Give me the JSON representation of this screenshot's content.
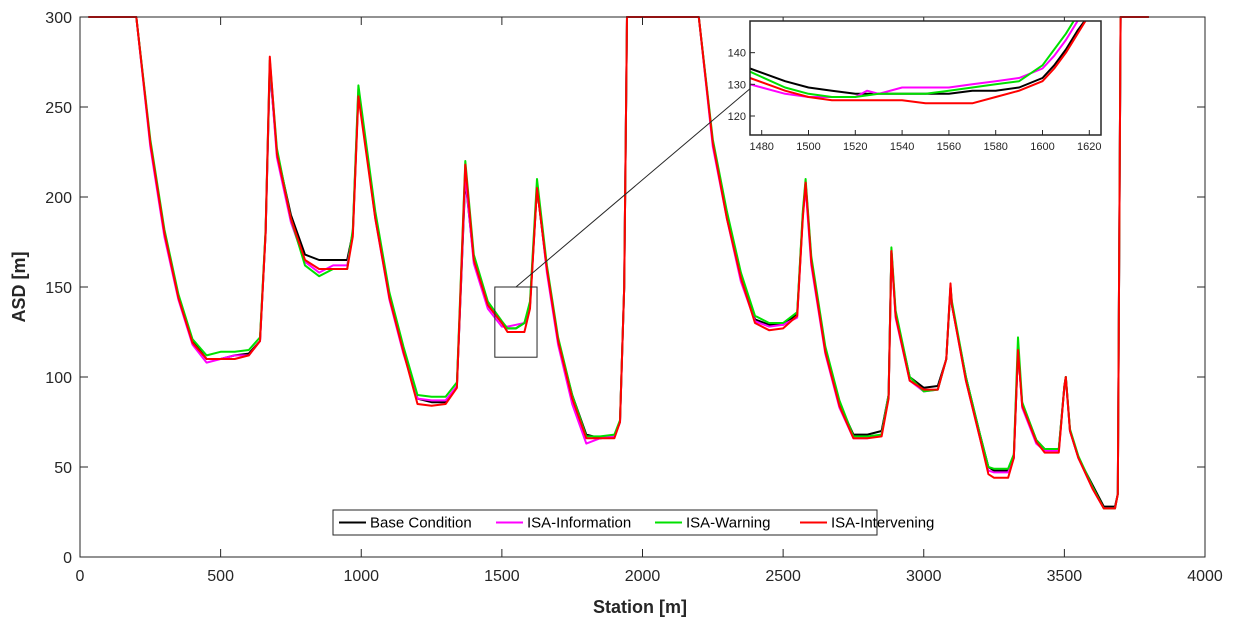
{
  "chart_data": {
    "type": "line",
    "title": "",
    "xlabel": "Station [m]",
    "ylabel": "ASD [m]",
    "xlim": [
      0,
      4000
    ],
    "ylim": [
      0,
      300
    ],
    "xticks": [
      0,
      500,
      1000,
      1500,
      2000,
      2500,
      3000,
      3500,
      4000
    ],
    "yticks": [
      0,
      50,
      100,
      150,
      200,
      250,
      300
    ],
    "grid": false,
    "legend_position": "bottom-center",
    "series": [
      {
        "name": "Base Condition",
        "color": "#000000",
        "x": [
          30,
          200,
          250,
          300,
          350,
          400,
          450,
          500,
          550,
          600,
          640,
          660,
          675,
          700,
          750,
          800,
          850,
          900,
          950,
          970,
          990,
          1050,
          1100,
          1150,
          1200,
          1250,
          1300,
          1340,
          1370,
          1400,
          1450,
          1500,
          1520,
          1550,
          1580,
          1600,
          1625,
          1660,
          1700,
          1750,
          1800,
          1850,
          1900,
          1920,
          1935,
          1945,
          2200,
          2250,
          2300,
          2350,
          2400,
          2450,
          2500,
          2550,
          2570,
          2580,
          2600,
          2650,
          2700,
          2750,
          2800,
          2850,
          2875,
          2885,
          2900,
          2950,
          3000,
          3050,
          3080,
          3095,
          3100,
          3150,
          3200,
          3230,
          3250,
          3300,
          3320,
          3335,
          3350,
          3400,
          3430,
          3450,
          3480,
          3500,
          3505,
          3520,
          3550,
          3600,
          3640,
          3680,
          3690,
          3700,
          3800
        ],
        "y": [
          300,
          300,
          230,
          180,
          145,
          120,
          110,
          110,
          112,
          113,
          120,
          180,
          272,
          225,
          190,
          168,
          165,
          165,
          165,
          180,
          258,
          190,
          145,
          115,
          88,
          86,
          86,
          95,
          210,
          165,
          140,
          130,
          127,
          127,
          130,
          140,
          205,
          160,
          120,
          90,
          68,
          66,
          67,
          75,
          150,
          300,
          300,
          230,
          190,
          155,
          132,
          129,
          129,
          135,
          190,
          208,
          165,
          115,
          85,
          68,
          68,
          70,
          90,
          170,
          135,
          100,
          94,
          95,
          110,
          150,
          140,
          100,
          68,
          50,
          48,
          48,
          55,
          115,
          85,
          65,
          60,
          60,
          60,
          95,
          100,
          70,
          55,
          40,
          28,
          28,
          35,
          300,
          300
        ]
      },
      {
        "name": "ISA-Information",
        "color": "#ff00ff",
        "x": [
          30,
          200,
          250,
          300,
          350,
          400,
          450,
          500,
          550,
          600,
          640,
          660,
          675,
          700,
          750,
          800,
          850,
          900,
          950,
          970,
          990,
          1050,
          1100,
          1150,
          1200,
          1250,
          1300,
          1340,
          1370,
          1400,
          1450,
          1500,
          1520,
          1550,
          1580,
          1600,
          1625,
          1660,
          1700,
          1750,
          1800,
          1850,
          1900,
          1920,
          1935,
          1945,
          2200,
          2250,
          2300,
          2350,
          2400,
          2450,
          2500,
          2550,
          2570,
          2580,
          2600,
          2650,
          2700,
          2750,
          2800,
          2850,
          2875,
          2885,
          2900,
          2950,
          3000,
          3050,
          3080,
          3095,
          3100,
          3150,
          3200,
          3230,
          3250,
          3300,
          3320,
          3335,
          3350,
          3400,
          3430,
          3450,
          3480,
          3500,
          3505,
          3520,
          3550,
          3600,
          3640,
          3680,
          3690,
          3700,
          3800
        ],
        "y": [
          300,
          300,
          228,
          178,
          143,
          118,
          108,
          110,
          112,
          112,
          120,
          180,
          274,
          222,
          186,
          164,
          158,
          162,
          162,
          180,
          260,
          188,
          143,
          113,
          88,
          87,
          87,
          95,
          212,
          163,
          138,
          128,
          128,
          129,
          130,
          140,
          207,
          158,
          118,
          85,
          63,
          66,
          67,
          75,
          150,
          300,
          300,
          228,
          188,
          153,
          131,
          128,
          129,
          133,
          190,
          205,
          162,
          113,
          83,
          66,
          66,
          68,
          90,
          170,
          133,
          98,
          92,
          93,
          110,
          150,
          140,
          98,
          66,
          48,
          47,
          47,
          55,
          117,
          83,
          63,
          59,
          59,
          59,
          95,
          99,
          70,
          55,
          38,
          27,
          27,
          35,
          300,
          300
        ]
      },
      {
        "name": "ISA-Warning",
        "color": "#00e000",
        "x": [
          30,
          200,
          250,
          300,
          350,
          400,
          450,
          500,
          550,
          600,
          640,
          660,
          675,
          700,
          750,
          800,
          850,
          900,
          950,
          970,
          990,
          1050,
          1100,
          1150,
          1200,
          1250,
          1300,
          1340,
          1370,
          1400,
          1450,
          1500,
          1520,
          1550,
          1580,
          1600,
          1625,
          1660,
          1700,
          1750,
          1800,
          1850,
          1900,
          1920,
          1935,
          1945,
          2200,
          2250,
          2300,
          2350,
          2400,
          2450,
          2500,
          2550,
          2570,
          2580,
          2600,
          2650,
          2700,
          2750,
          2800,
          2850,
          2875,
          2885,
          2900,
          2950,
          3000,
          3050,
          3080,
          3095,
          3100,
          3150,
          3200,
          3230,
          3250,
          3300,
          3320,
          3335,
          3350,
          3400,
          3430,
          3450,
          3480,
          3500,
          3505,
          3520,
          3550,
          3600,
          3640,
          3680,
          3690,
          3700,
          3800
        ],
        "y": [
          300,
          300,
          232,
          182,
          146,
          121,
          112,
          114,
          114,
          115,
          122,
          182,
          276,
          227,
          188,
          162,
          156,
          160,
          160,
          182,
          262,
          192,
          147,
          117,
          90,
          89,
          89,
          97,
          220,
          168,
          142,
          131,
          127,
          127,
          130,
          142,
          210,
          162,
          122,
          90,
          67,
          67,
          68,
          76,
          150,
          300,
          300,
          232,
          192,
          158,
          134,
          130,
          130,
          136,
          192,
          210,
          167,
          117,
          87,
          67,
          67,
          68,
          90,
          172,
          137,
          100,
          92,
          93,
          110,
          150,
          142,
          100,
          68,
          50,
          49,
          49,
          57,
          122,
          86,
          65,
          60,
          60,
          60,
          95,
          100,
          71,
          56,
          39,
          27,
          27,
          35,
          300,
          300
        ]
      },
      {
        "name": "ISA-Intervening",
        "color": "#ff0000",
        "x": [
          30,
          200,
          250,
          300,
          350,
          400,
          450,
          500,
          550,
          600,
          640,
          660,
          675,
          700,
          750,
          800,
          850,
          900,
          950,
          970,
          990,
          1050,
          1100,
          1150,
          1200,
          1250,
          1300,
          1340,
          1370,
          1400,
          1450,
          1500,
          1520,
          1550,
          1580,
          1600,
          1625,
          1660,
          1700,
          1750,
          1800,
          1850,
          1900,
          1920,
          1935,
          1945,
          2200,
          2250,
          2300,
          2350,
          2400,
          2450,
          2500,
          2550,
          2570,
          2580,
          2600,
          2650,
          2700,
          2750,
          2800,
          2850,
          2875,
          2885,
          2900,
          2950,
          3000,
          3050,
          3080,
          3095,
          3100,
          3150,
          3200,
          3230,
          3250,
          3300,
          3320,
          3335,
          3350,
          3400,
          3430,
          3450,
          3480,
          3500,
          3505,
          3520,
          3550,
          3600,
          3640,
          3680,
          3690,
          3700,
          3800
        ],
        "y": [
          300,
          300,
          230,
          180,
          144,
          119,
          110,
          110,
          110,
          112,
          120,
          180,
          278,
          224,
          188,
          165,
          160,
          160,
          160,
          178,
          256,
          188,
          144,
          114,
          85,
          84,
          85,
          94,
          218,
          165,
          140,
          130,
          125,
          125,
          125,
          138,
          205,
          160,
          120,
          88,
          66,
          66,
          66,
          75,
          150,
          300,
          300,
          230,
          188,
          155,
          130,
          126,
          127,
          134,
          188,
          208,
          164,
          114,
          84,
          66,
          66,
          67,
          88,
          170,
          134,
          98,
          93,
          93,
          110,
          152,
          140,
          98,
          66,
          46,
          44,
          44,
          55,
          115,
          84,
          64,
          58,
          58,
          58,
          95,
          100,
          70,
          55,
          38,
          27,
          27,
          35,
          300,
          300
        ]
      }
    ],
    "inset": {
      "xlim": [
        1475,
        1625
      ],
      "ylim": [
        114,
        150
      ],
      "xticks": [
        1480,
        1500,
        1520,
        1540,
        1560,
        1580,
        1600,
        1620
      ],
      "yticks": [
        120,
        130,
        140
      ],
      "zoom_box": {
        "xlim": [
          1475,
          1625
        ],
        "ylim": [
          111,
          150
        ]
      },
      "series": [
        {
          "name": "Base Condition",
          "color": "#000000",
          "x": [
            1475,
            1490,
            1500,
            1510,
            1520,
            1530,
            1540,
            1550,
            1560,
            1570,
            1580,
            1590,
            1600,
            1605,
            1610,
            1615,
            1620
          ],
          "y": [
            135,
            131,
            129,
            128,
            127,
            127,
            127,
            127,
            127,
            128,
            128,
            129,
            132,
            136,
            141,
            147,
            152
          ]
        },
        {
          "name": "ISA-Information",
          "color": "#ff00ff",
          "x": [
            1475,
            1490,
            1500,
            1510,
            1520,
            1525,
            1530,
            1540,
            1550,
            1560,
            1570,
            1580,
            1590,
            1600,
            1605,
            1610,
            1615,
            1620
          ],
          "y": [
            130,
            127,
            126,
            126,
            126,
            128,
            127,
            129,
            129,
            129,
            130,
            131,
            132,
            135,
            139,
            144,
            150,
            155
          ]
        },
        {
          "name": "ISA-Warning",
          "color": "#00e000",
          "x": [
            1475,
            1490,
            1500,
            1510,
            1520,
            1530,
            1540,
            1550,
            1560,
            1570,
            1580,
            1590,
            1600,
            1605,
            1610,
            1615
          ],
          "y": [
            134,
            129,
            127,
            126,
            126,
            127,
            127,
            127,
            128,
            129,
            130,
            131,
            136,
            141,
            146,
            152
          ]
        },
        {
          "name": "ISA-Intervening",
          "color": "#ff0000",
          "x": [
            1475,
            1490,
            1500,
            1510,
            1520,
            1530,
            1540,
            1550,
            1560,
            1570,
            1580,
            1590,
            1600,
            1605,
            1610,
            1615,
            1620
          ],
          "y": [
            132,
            128,
            126,
            125,
            125,
            125,
            125,
            124,
            124,
            124,
            126,
            128,
            131,
            135,
            140,
            146,
            152
          ]
        }
      ]
    }
  }
}
